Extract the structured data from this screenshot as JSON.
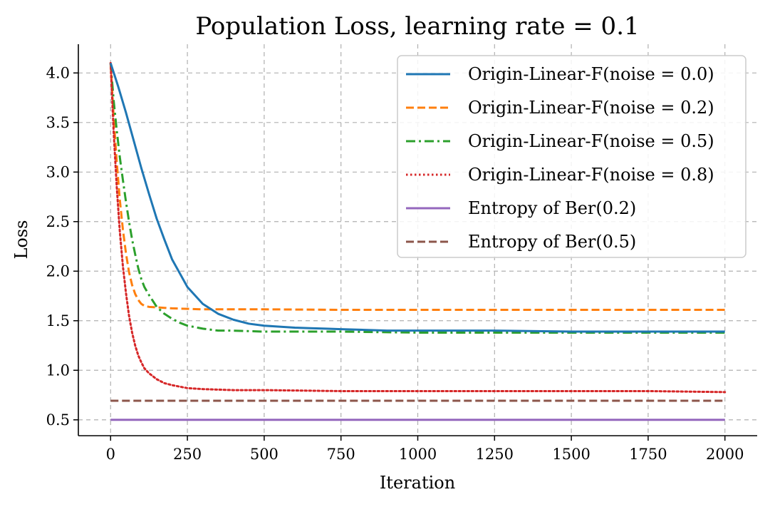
{
  "chart_data": {
    "type": "line",
    "title": "Population Loss, learning rate = 0.1",
    "xlabel": "Iteration",
    "ylabel": "Loss",
    "xlim": [
      -105,
      2105
    ],
    "ylim": [
      0.34,
      4.29
    ],
    "xticks": [
      0,
      250,
      500,
      750,
      1000,
      1250,
      1500,
      1750,
      2000
    ],
    "xtick_labels": [
      "0",
      "250",
      "500",
      "750",
      "1000",
      "1250",
      "1500",
      "1750",
      "2000"
    ],
    "yticks": [
      0.5,
      1.0,
      1.5,
      2.0,
      2.5,
      3.0,
      3.5,
      4.0
    ],
    "ytick_labels": [
      "0.5",
      "1.0",
      "1.5",
      "2.0",
      "2.5",
      "3.0",
      "3.5",
      "4.0"
    ],
    "grid": true,
    "legend_position": "top-right",
    "series": [
      {
        "name": "Origin-Linear-F(noise = 0.0)",
        "color": "#1f77b4",
        "style": "solid",
        "x": [
          0,
          25,
          50,
          75,
          100,
          125,
          150,
          175,
          200,
          250,
          300,
          350,
          400,
          450,
          500,
          550,
          600,
          650,
          700,
          750,
          800,
          900,
          1000,
          1100,
          1250,
          1500,
          1750,
          2000
        ],
        "values": [
          4.1,
          3.86,
          3.6,
          3.32,
          3.04,
          2.78,
          2.53,
          2.32,
          2.12,
          1.84,
          1.67,
          1.57,
          1.51,
          1.47,
          1.45,
          1.44,
          1.43,
          1.425,
          1.42,
          1.415,
          1.41,
          1.4,
          1.4,
          1.4,
          1.4,
          1.39,
          1.39,
          1.39
        ]
      },
      {
        "name": "Origin-Linear-F(noise = 0.2)",
        "color": "#ff7f0e",
        "style": "dashed",
        "x": [
          0,
          10,
          20,
          30,
          40,
          50,
          60,
          70,
          80,
          90,
          100,
          110,
          125,
          150,
          175,
          200,
          250,
          300,
          400,
          500,
          750,
          1000,
          1250,
          1500,
          1750,
          2000
        ],
        "values": [
          4.1,
          3.55,
          3.1,
          2.72,
          2.42,
          2.18,
          1.99,
          1.86,
          1.77,
          1.71,
          1.67,
          1.65,
          1.64,
          1.635,
          1.63,
          1.625,
          1.62,
          1.615,
          1.615,
          1.615,
          1.61,
          1.61,
          1.61,
          1.61,
          1.61,
          1.61
        ]
      },
      {
        "name": "Origin-Linear-F(noise = 0.5)",
        "color": "#2ca02c",
        "style": "dashdot",
        "x": [
          0,
          10,
          20,
          30,
          40,
          50,
          60,
          70,
          80,
          90,
          100,
          110,
          125,
          150,
          175,
          200,
          225,
          250,
          300,
          350,
          400,
          500,
          750,
          1000,
          1250,
          1500,
          1750,
          2000
        ],
        "values": [
          4.1,
          3.72,
          3.42,
          3.15,
          2.92,
          2.7,
          2.5,
          2.32,
          2.17,
          2.03,
          1.92,
          1.84,
          1.76,
          1.64,
          1.57,
          1.52,
          1.48,
          1.45,
          1.42,
          1.4,
          1.4,
          1.39,
          1.39,
          1.38,
          1.38,
          1.38,
          1.38,
          1.38
        ]
      },
      {
        "name": "Origin-Linear-F(noise = 0.8)",
        "color": "#d62728",
        "style": "dotted",
        "x": [
          0,
          10,
          20,
          30,
          40,
          50,
          60,
          70,
          80,
          90,
          100,
          110,
          125,
          150,
          175,
          200,
          250,
          300,
          400,
          500,
          750,
          1000,
          1250,
          1500,
          1750,
          2000
        ],
        "values": [
          4.1,
          3.4,
          2.85,
          2.4,
          2.05,
          1.78,
          1.55,
          1.38,
          1.25,
          1.15,
          1.08,
          1.02,
          0.97,
          0.91,
          0.87,
          0.85,
          0.82,
          0.81,
          0.8,
          0.8,
          0.79,
          0.79,
          0.79,
          0.79,
          0.79,
          0.78
        ]
      },
      {
        "name": "Entropy of Ber(0.2)",
        "color": "#9467bd",
        "style": "solid",
        "x": [
          0,
          2000
        ],
        "values": [
          0.5,
          0.5
        ]
      },
      {
        "name": "Entropy of Ber(0.5)",
        "color": "#8c564b",
        "style": "dashed",
        "x": [
          0,
          2000
        ],
        "values": [
          0.693,
          0.693
        ]
      }
    ]
  }
}
